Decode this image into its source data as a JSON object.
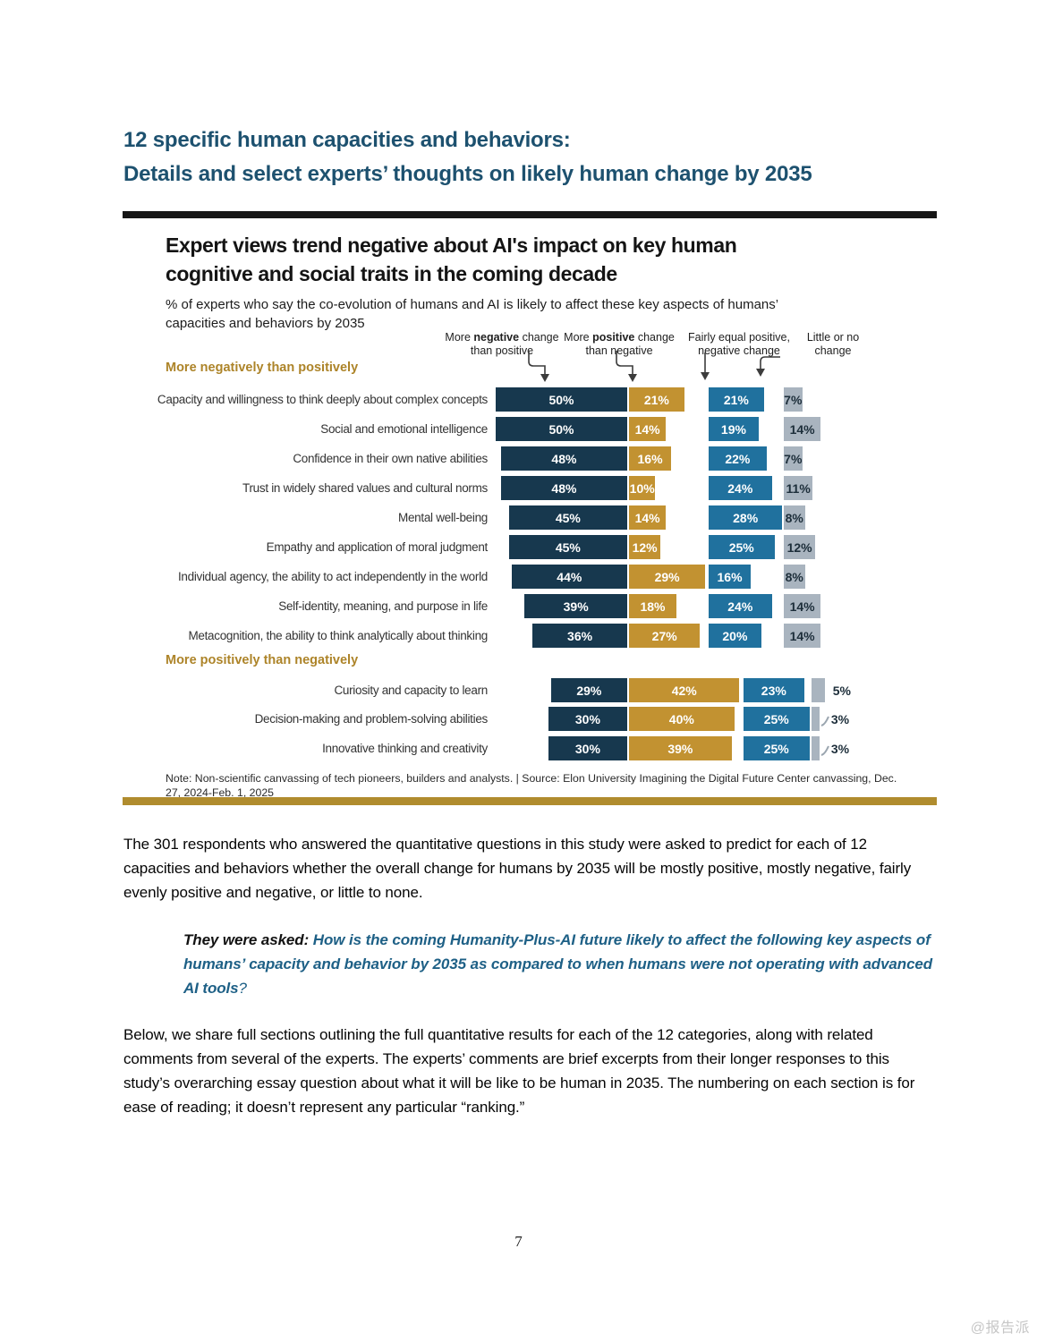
{
  "page": {
    "title_line1": "12 specific human capacities and behaviors:",
    "title_line2": "Details and select experts’ thoughts on likely human change by 2035",
    "page_number": "7",
    "watermark": "@报告派"
  },
  "chart": {
    "title_line1": "Expert views trend negative about AI's impact on key human",
    "title_line2": "cognitive and social traits in the coming decade",
    "subtitle_line1": "% of experts who say the co-evolution of humans and AI is likely to affect these key aspects of humans’",
    "subtitle_line2": "capacities and behaviors by 2035",
    "column_headers": [
      {
        "pre": "More ",
        "bold": "negative",
        "post": " change than positive"
      },
      {
        "pre": "More ",
        "bold": "positive",
        "post": " change than negative"
      },
      {
        "pre": "Fairly equal positive, negative change",
        "bold": "",
        "post": ""
      },
      {
        "pre": "Little or no change",
        "bold": "",
        "post": ""
      }
    ],
    "note": "Note: Non-scientific canvassing of tech pioneers, builders and analysts. | Source: Elon University Imagining the Digital Future Center canvassing,  Dec. 27, 2024-Feb. 1, 2025",
    "colors": {
      "negative": "#17384e",
      "positive": "#c29231",
      "equal": "#20719e",
      "little": "#a9b4bf",
      "section_header": "#ad8429",
      "bottom_rule": "#b08c2e",
      "top_rule": "#161616",
      "page_title": "#1d516f",
      "quote_teal": "#1e6086"
    }
  },
  "chart_data": {
    "type": "bar",
    "orientation": "horizontal",
    "unit": "%",
    "categories": [
      "Capacity and willingness to think deeply about complex concepts",
      "Social and emotional intelligence",
      "Confidence in their own native abilities",
      "Trust in widely shared values and cultural norms",
      "Mental well-being",
      "Empathy and application of moral judgment",
      "Individual agency, the ability to act independently in the world",
      "Self-identity, meaning, and purpose in life",
      "Metacognition, the ability to think analytically about thinking",
      "Curiosity and capacity to learn",
      "Decision-making and problem-solving abilities",
      "Innovative thinking and creativity"
    ],
    "series": [
      {
        "name": "More negative change than positive",
        "color": "#17384e",
        "values": [
          50,
          50,
          48,
          48,
          45,
          45,
          44,
          39,
          36,
          29,
          30,
          30
        ]
      },
      {
        "name": "More positive change than negative",
        "color": "#c29231",
        "values": [
          21,
          14,
          16,
          10,
          14,
          12,
          29,
          18,
          27,
          42,
          40,
          39
        ]
      },
      {
        "name": "Fairly equal positive, negative change",
        "color": "#20719e",
        "values": [
          21,
          19,
          22,
          24,
          28,
          25,
          16,
          24,
          20,
          23,
          25,
          25
        ]
      },
      {
        "name": "Little or no change",
        "color": "#a9b4bf",
        "values": [
          7,
          14,
          7,
          11,
          8,
          12,
          8,
          14,
          14,
          5,
          3,
          3
        ]
      }
    ],
    "groups": [
      {
        "label": "More negatively than positively",
        "rows": [
          0,
          1,
          2,
          3,
          4,
          5,
          6,
          7,
          8
        ]
      },
      {
        "label": "More positively than negatively",
        "rows": [
          9,
          10,
          11
        ]
      }
    ],
    "title": "Expert views trend negative about AI's impact on key human cognitive and social traits in the coming decade",
    "xlabel": "",
    "ylabel": "",
    "legend_position": "top",
    "grid": false
  },
  "body": {
    "p1": "The 301 respondents who answered the quantitative questions in this study were asked to predict for each of 12 capacities and behaviors whether the overall change for humans by 2035 will be mostly positive, mostly negative, fairly evenly positive and negative, or little to none.",
    "quote_label": "They were asked: ",
    "quote_text": "How is the coming Humanity-Plus-AI future likely to affect the following key aspects of humans’ capacity and behavior by 2035 as compared to when humans were not operating with advanced AI tools",
    "quote_mark": "?",
    "p2": "Below, we share full sections outlining the full quantitative results for each of the 12 categories, along with related comments from several of the experts. The experts’ comments are brief excerpts from their longer responses to this study’s overarching essay question about what it will be like to be human in 2035. The numbering on each section is for ease of reading; it doesn’t represent any particular “ranking.”"
  }
}
